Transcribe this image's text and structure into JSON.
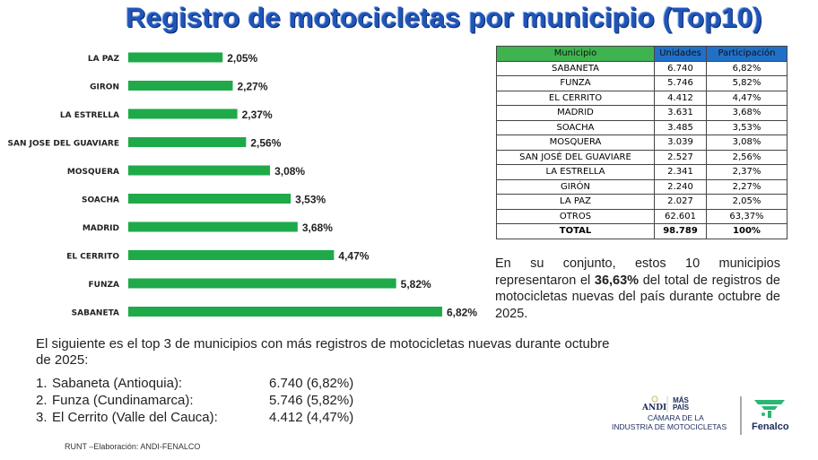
{
  "title": "Registro de motocicletas por municipio (Top10)",
  "chart_data": {
    "type": "bar",
    "orientation": "horizontal",
    "categories": [
      "LA PAZ",
      "GIRON",
      "LA ESTRELLA",
      "SAN JOSE DEL GUAVIARE",
      "MOSQUERA",
      "SOACHA",
      "MADRID",
      "EL CERRITO",
      "FUNZA",
      "SABANETA"
    ],
    "values": [
      2.05,
      2.27,
      2.37,
      2.56,
      3.08,
      3.53,
      3.68,
      4.47,
      5.82,
      6.82
    ],
    "labels": [
      "2,05%",
      "2,27%",
      "2,37%",
      "2,56%",
      "3,08%",
      "3,53%",
      "3,68%",
      "4,47%",
      "5,82%",
      "6,82%"
    ],
    "color": "#1faa4a",
    "xlim": [
      0,
      7
    ]
  },
  "table": {
    "headers": [
      "Municipio",
      "Unidades",
      "Participación"
    ],
    "rows": [
      [
        "SABANETA",
        "6.740",
        "6,82%"
      ],
      [
        "FUNZA",
        "5.746",
        "5,82%"
      ],
      [
        "EL CERRITO",
        "4.412",
        "4,47%"
      ],
      [
        "MADRID",
        "3.631",
        "3,68%"
      ],
      [
        "SOACHA",
        "3.485",
        "3,53%"
      ],
      [
        "MOSQUERA",
        "3.039",
        "3,08%"
      ],
      [
        "SAN JOSÉ DEL GUAVIARE",
        "2.527",
        "2,56%"
      ],
      [
        "LA ESTRELLA",
        "2.341",
        "2,37%"
      ],
      [
        "GIRÓN",
        "2.240",
        "2,27%"
      ],
      [
        "LA PAZ",
        "2.027",
        "2,05%"
      ],
      [
        "OTROS",
        "62.601",
        "63,37%"
      ]
    ],
    "total": [
      "TOTAL",
      "98.789",
      "100%"
    ]
  },
  "summary": {
    "before": "En su conjunto, estos 10 municipios representaron el ",
    "highlight": "36,63%",
    "after": " del total de registros de motocicletas nuevas del país durante octubre de 2025."
  },
  "top3_intro": "El siguiente es el top 3 de municipios con más registros de motocicletas nuevas durante octubre de 2025:",
  "top3": [
    {
      "n": "1.",
      "label": "Sabaneta (Antioquia):",
      "value": "6.740 (6,82%)"
    },
    {
      "n": "2.",
      "label": "Funza (Cundinamarca):",
      "value": "5.746 (5,82%)"
    },
    {
      "n": "3.",
      "label": "El Cerrito (Valle del Cauca):",
      "value": "4.412 (4,47%)"
    }
  ],
  "source": "RUNT –Elaboración: ANDI-FENALCO",
  "logos": {
    "andi": "ANDI",
    "mas_pais": "MÁS PAÍS",
    "camara": "CÁMARA DE LA",
    "industria": "INDUSTRIA DE MOTOCICLETAS",
    "fenalco": "Fenalco"
  }
}
